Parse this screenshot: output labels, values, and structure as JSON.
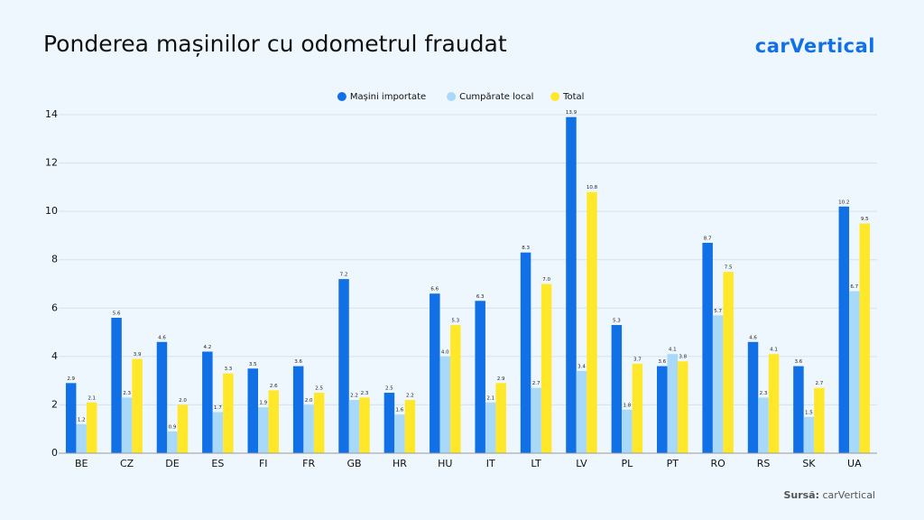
{
  "chart_data": {
    "type": "bar",
    "title": "Ponderea mașinilor cu odometrul fraudat",
    "logo": "carVertical",
    "source_label": "Sursă:",
    "source": "carVertical",
    "categories": [
      "BE",
      "CZ",
      "DE",
      "ES",
      "FI",
      "FR",
      "GB",
      "HR",
      "HU",
      "IT",
      "LT",
      "LV",
      "PL",
      "PT",
      "RO",
      "RS",
      "SK",
      "UA"
    ],
    "series": [
      {
        "name": "Mașini importate",
        "color": "#1270e6",
        "values": [
          2.9,
          5.6,
          4.6,
          4.2,
          3.5,
          3.6,
          7.2,
          2.5,
          6.6,
          6.3,
          8.3,
          13.9,
          5.3,
          3.6,
          8.7,
          4.6,
          3.6,
          10.2
        ],
        "value_labels": [
          "2.9",
          "5.6",
          "4.6",
          "4.2",
          "3.5",
          "3.6",
          "7.2",
          "2.5",
          "6.6",
          "6.3",
          "8.3",
          "13.9",
          "5.3",
          "3.6",
          "8.7",
          "4.6",
          "3.6",
          "10.2"
        ]
      },
      {
        "name": "Cumpărate local",
        "color": "#a9d9f9",
        "values": [
          1.2,
          2.3,
          0.9,
          1.7,
          1.9,
          2.0,
          2.2,
          1.6,
          4.0,
          2.1,
          2.7,
          3.4,
          1.8,
          4.1,
          5.7,
          2.3,
          1.5,
          6.7
        ],
        "value_labels": [
          "1.2",
          "2.3",
          "0.9",
          "1.7",
          "1.9",
          "2.0",
          "2.2",
          "1.6",
          "4.0",
          "2.1",
          "2.7",
          "3.4",
          "1.8",
          "4.1",
          "5.7",
          "2.3",
          "1.5",
          "6.7"
        ]
      },
      {
        "name": "Total",
        "color": "#ffe82a",
        "values": [
          2.1,
          3.9,
          2.0,
          3.3,
          2.6,
          2.5,
          2.3,
          2.2,
          5.3,
          2.9,
          7.0,
          10.8,
          3.7,
          3.8,
          7.5,
          4.1,
          2.7,
          9.5
        ],
        "value_labels": [
          "2.1",
          "3.9",
          "2.0",
          "3.3",
          "2.6",
          "2.5",
          "2.3",
          "2.2",
          "5.3",
          "2.9",
          "7.0",
          "10.8",
          "3.7",
          "3.8",
          "7.5",
          "4.1",
          "2.7",
          "9.5"
        ]
      }
    ],
    "ylim": [
      0,
      14
    ],
    "yticks": [
      0,
      2,
      4,
      6,
      8,
      10,
      12,
      14
    ],
    "grid": true,
    "legend": "top"
  }
}
